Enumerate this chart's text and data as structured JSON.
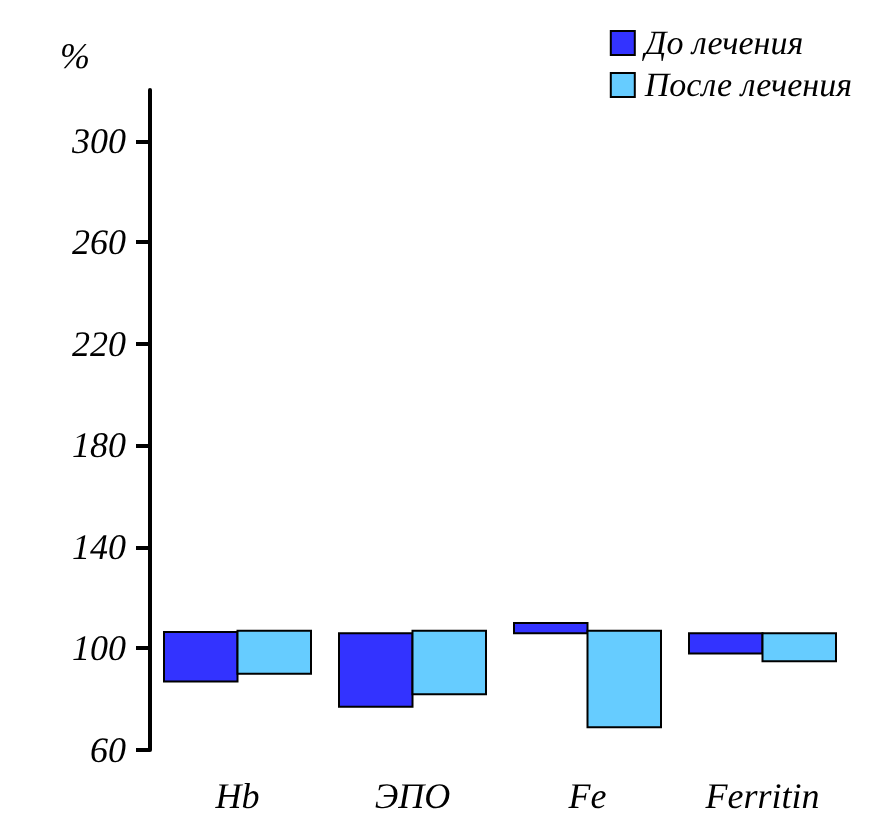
{
  "chart_data": {
    "type": "bar",
    "ylabel": "%",
    "categories": [
      "Hb",
      "ЭПО",
      "Fe",
      "Ferritin"
    ],
    "series": [
      {
        "name": "До лечения",
        "color": "#3333ff",
        "base": [
          87,
          77,
          106,
          98
        ],
        "values": [
          19.5,
          29,
          4,
          8
        ]
      },
      {
        "name": "После лечения",
        "color": "#66ccff",
        "base": [
          90,
          82,
          69,
          95
        ],
        "values": [
          17,
          25,
          38,
          11
        ]
      }
    ],
    "ylim": [
      60,
      320
    ],
    "yticks": [
      60,
      100,
      140,
      180,
      220,
      260,
      300
    ],
    "grid": false,
    "legend": "top right"
  }
}
